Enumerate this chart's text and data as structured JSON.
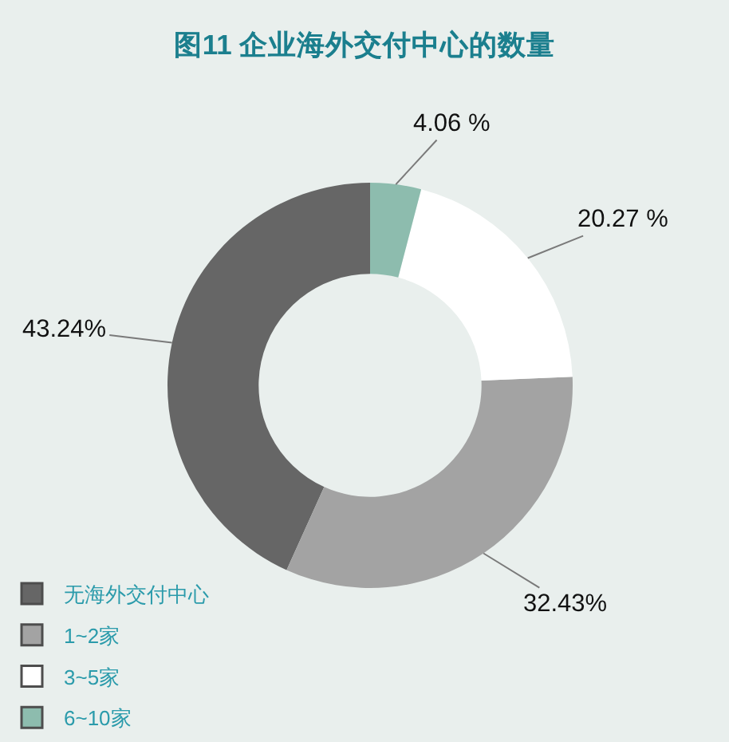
{
  "chart_data": {
    "type": "donut",
    "title": "图11 企业海外交付中心的数量",
    "categories": [
      "无海外交付中心",
      "1~2家",
      "3~5家",
      "6~10家"
    ],
    "values": [
      43.24,
      32.43,
      20.27,
      4.06
    ],
    "colors": [
      "#666666",
      "#a3a3a3",
      "#ffffff",
      "#8dbcae"
    ],
    "value_labels": [
      "43.24%",
      "32.43%",
      "20.27 %",
      "4.06 %"
    ],
    "legend": "bottom left"
  }
}
